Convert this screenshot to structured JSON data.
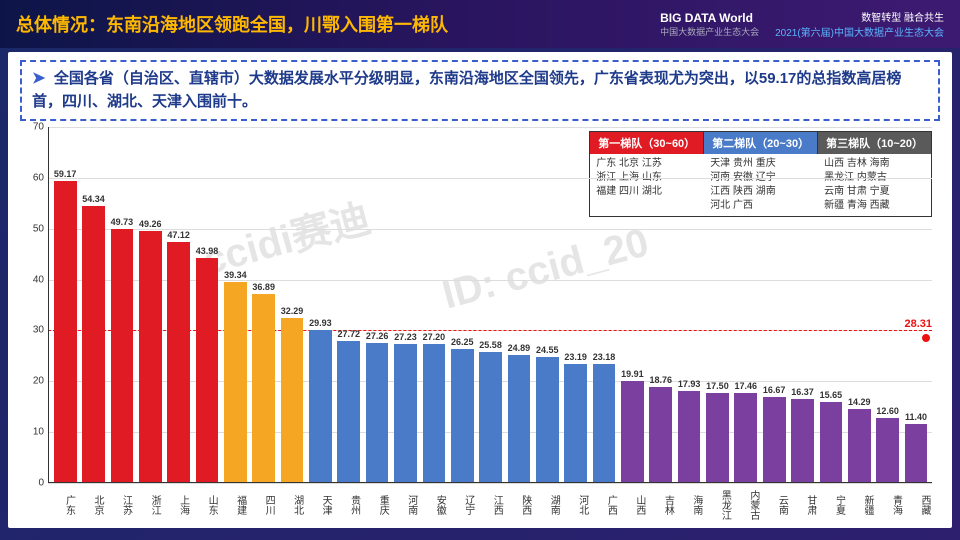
{
  "header": {
    "title": "总体情况：东南沿海地区领跑全国，川鄂入围第一梯队",
    "logo_main": "BIG DATA World",
    "logo_sub": "中国大数据产业生态大会",
    "logo_r1": "数智转型 融合共生",
    "logo_r2": "2021(第六届)中国大数据产业生态大会"
  },
  "summary": {
    "text": "全国各省（自治区、直辖市）大数据发展水平分级明显，东南沿海地区全国领先，广东省表现尤为突出，以59.17的总指数高居榜首，四川、湖北、天津入围前十。"
  },
  "chart": {
    "type": "bar",
    "ylim": [
      0,
      70
    ],
    "ytick_step": 10,
    "threshold_line_y": 30,
    "threshold_line_color": "#e11",
    "final_point": {
      "label": "28.31",
      "y": 28.31
    },
    "tiers": [
      {
        "name": "第一梯队（30~60）",
        "color": "#e01b24",
        "provinces": "广东 北京 江苏\n浙江 上海 山东\n福建 四川 湖北"
      },
      {
        "name": "第二梯队（20~30）",
        "color": "#4a7bc8",
        "provinces": "天津 贵州 重庆\n河南 安徽 辽宁\n江西 陕西 湖南\n河北 广西"
      },
      {
        "name": "第三梯队（10~20）",
        "color": "#5a5a5a",
        "provinces": "山西 吉林 海南\n黑龙江 内蒙古\n云南 甘肃 宁夏\n新疆 青海 西藏"
      }
    ],
    "colors": {
      "tier1a": "#e01b24",
      "tier1b": "#f5a623",
      "tier2": "#4a7bc8",
      "tier3": "#7b3fa0"
    },
    "bars": [
      {
        "name": "广东",
        "value": 59.17,
        "color": "#e01b24"
      },
      {
        "name": "北京",
        "value": 54.34,
        "color": "#e01b24"
      },
      {
        "name": "江苏",
        "value": 49.73,
        "color": "#e01b24"
      },
      {
        "name": "浙江",
        "value": 49.26,
        "color": "#e01b24"
      },
      {
        "name": "上海",
        "value": 47.12,
        "color": "#e01b24"
      },
      {
        "name": "山东",
        "value": 43.98,
        "color": "#e01b24"
      },
      {
        "name": "福建",
        "value": 39.34,
        "color": "#f5a623"
      },
      {
        "name": "四川",
        "value": 36.89,
        "color": "#f5a623"
      },
      {
        "name": "湖北",
        "value": 32.29,
        "color": "#f5a623"
      },
      {
        "name": "天津",
        "value": 29.93,
        "color": "#4a7bc8"
      },
      {
        "name": "贵州",
        "value": 27.72,
        "color": "#4a7bc8"
      },
      {
        "name": "重庆",
        "value": 27.26,
        "color": "#4a7bc8"
      },
      {
        "name": "河南",
        "value": 27.23,
        "color": "#4a7bc8"
      },
      {
        "name": "安徽",
        "value": 27.2,
        "color": "#4a7bc8"
      },
      {
        "name": "辽宁",
        "value": 26.25,
        "color": "#4a7bc8"
      },
      {
        "name": "江西",
        "value": 25.58,
        "color": "#4a7bc8"
      },
      {
        "name": "陕西",
        "value": 24.89,
        "color": "#4a7bc8"
      },
      {
        "name": "湖南",
        "value": 24.55,
        "color": "#4a7bc8"
      },
      {
        "name": "河北",
        "value": 23.19,
        "color": "#4a7bc8"
      },
      {
        "name": "广西",
        "value": 23.18,
        "color": "#4a7bc8"
      },
      {
        "name": "山西",
        "value": 19.91,
        "color": "#7b3fa0"
      },
      {
        "name": "吉林",
        "value": 18.76,
        "color": "#7b3fa0"
      },
      {
        "name": "海南",
        "value": 17.93,
        "color": "#7b3fa0"
      },
      {
        "name": "黑龙江",
        "value": 17.5,
        "color": "#7b3fa0"
      },
      {
        "name": "内蒙古",
        "value": 17.46,
        "color": "#7b3fa0"
      },
      {
        "name": "云南",
        "value": 16.67,
        "color": "#7b3fa0"
      },
      {
        "name": "甘肃",
        "value": 16.37,
        "color": "#7b3fa0"
      },
      {
        "name": "宁夏",
        "value": 15.65,
        "color": "#7b3fa0"
      },
      {
        "name": "新疆",
        "value": 14.29,
        "color": "#7b3fa0"
      },
      {
        "name": "青海",
        "value": 12.6,
        "color": "#7b3fa0"
      },
      {
        "name": "西藏",
        "value": 11.4,
        "color": "#7b3fa0"
      }
    ],
    "watermarks": [
      "ccidi赛迪",
      "ID: ccid_20"
    ]
  }
}
